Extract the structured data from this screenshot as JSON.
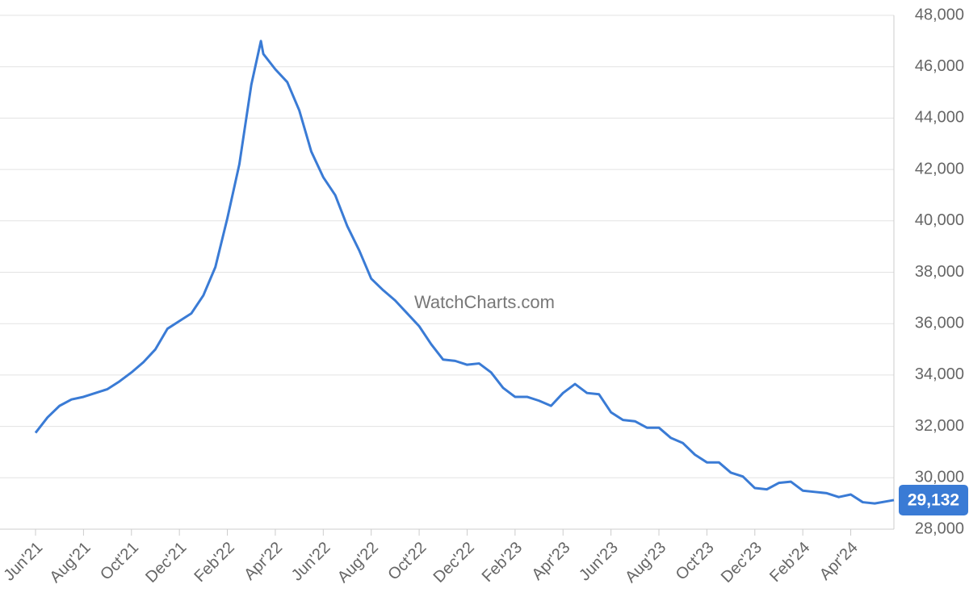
{
  "chart_data": {
    "type": "line",
    "watermark": "WatchCharts.com",
    "xlim": [
      0,
      35.8
    ],
    "xticks": [
      {
        "value": 0,
        "label": "Jun'21"
      },
      {
        "value": 2,
        "label": "Aug'21"
      },
      {
        "value": 4,
        "label": "Oct'21"
      },
      {
        "value": 6,
        "label": "Dec'21"
      },
      {
        "value": 8,
        "label": "Feb'22"
      },
      {
        "value": 10,
        "label": "Apr'22"
      },
      {
        "value": 12,
        "label": "Jun'22"
      },
      {
        "value": 14,
        "label": "Aug'22"
      },
      {
        "value": 16,
        "label": "Oct'22"
      },
      {
        "value": 18,
        "label": "Dec'22"
      },
      {
        "value": 20,
        "label": "Feb'23"
      },
      {
        "value": 22,
        "label": "Apr'23"
      },
      {
        "value": 24,
        "label": "Jun'23"
      },
      {
        "value": 26,
        "label": "Aug'23"
      },
      {
        "value": 28,
        "label": "Oct'23"
      },
      {
        "value": 30,
        "label": "Dec'23"
      },
      {
        "value": 32,
        "label": "Feb'24"
      },
      {
        "value": 34,
        "label": "Apr'24"
      }
    ],
    "ylim": [
      28000,
      48000
    ],
    "yticks": [
      {
        "value": 28000,
        "label": "28,000"
      },
      {
        "value": 30000,
        "label": "30,000"
      },
      {
        "value": 32000,
        "label": "32,000"
      },
      {
        "value": 34000,
        "label": "34,000"
      },
      {
        "value": 36000,
        "label": "36,000"
      },
      {
        "value": 38000,
        "label": "38,000"
      },
      {
        "value": 40000,
        "label": "40,000"
      },
      {
        "value": 42000,
        "label": "42,000"
      },
      {
        "value": 44000,
        "label": "44,000"
      },
      {
        "value": 46000,
        "label": "46,000"
      },
      {
        "value": 48000,
        "label": "48,000"
      }
    ],
    "grid": true,
    "x": [
      0,
      0.5,
      1,
      1.5,
      2,
      2.5,
      3,
      3.5,
      4,
      4.5,
      5,
      5.5,
      6,
      6.5,
      7,
      7.5,
      8,
      8.5,
      9,
      9.4,
      9.5,
      10,
      10.5,
      11,
      11.5,
      12,
      12.5,
      13,
      13.5,
      14,
      14.5,
      15,
      15.5,
      16,
      16.5,
      17,
      17.5,
      18,
      18.5,
      19,
      19.5,
      20,
      20.5,
      21,
      21.5,
      22,
      22.5,
      23,
      23.5,
      24,
      24.5,
      25,
      25.5,
      26,
      26.5,
      27,
      27.5,
      28,
      28.5,
      29,
      29.5,
      30,
      30.5,
      31,
      31.5,
      32,
      32.5,
      33,
      33.5,
      34,
      34.5,
      35,
      35.8
    ],
    "series": [
      {
        "color": "#3a7bd5",
        "values": [
          31750,
          32350,
          32800,
          33050,
          33150,
          33300,
          33450,
          33750,
          34100,
          34500,
          35000,
          35800,
          36100,
          36400,
          37100,
          38200,
          40100,
          42200,
          45300,
          47000,
          46500,
          45900,
          45400,
          44300,
          42700,
          41700,
          41000,
          39800,
          38850,
          37750,
          37300,
          36900,
          36400,
          35900,
          35200,
          34600,
          34550,
          34400,
          34450,
          34100,
          33500,
          33150,
          33150,
          33000,
          32800,
          33300,
          33650,
          33300,
          33250,
          32550,
          32250,
          32200,
          31950,
          31950,
          31550,
          31350,
          30900,
          30600,
          30600,
          30200,
          30050,
          29600,
          29550,
          29800,
          29850,
          29500,
          29450,
          29400,
          29250,
          29350,
          29050,
          29000,
          29132
        ],
        "value_labels": [
          null,
          null,
          null,
          null,
          null,
          null,
          null,
          null,
          null,
          null,
          null,
          null,
          null,
          null,
          null,
          null,
          null,
          null,
          null,
          null,
          null,
          null,
          null,
          null,
          null,
          null,
          null,
          null,
          null,
          null,
          null,
          null,
          null,
          null,
          null,
          null,
          null,
          null,
          null,
          null,
          null,
          null,
          null,
          null,
          null,
          null,
          null,
          null,
          null,
          null,
          null,
          null,
          null,
          null,
          null,
          null,
          null,
          null,
          null,
          null,
          null,
          null,
          null,
          null,
          null,
          null,
          null,
          null,
          null,
          null,
          null,
          null,
          "29,132"
        ]
      }
    ]
  }
}
